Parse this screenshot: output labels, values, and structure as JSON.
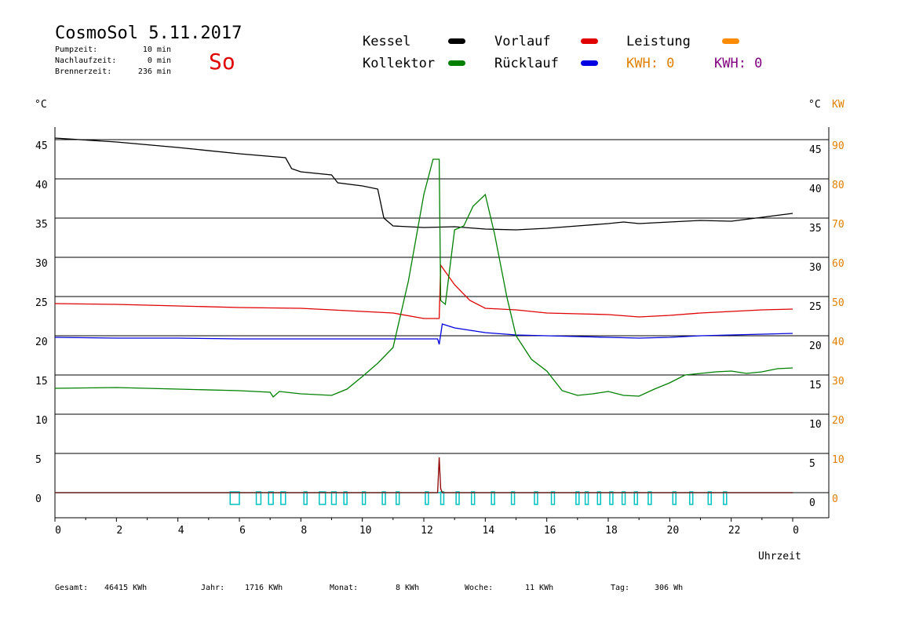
{
  "header": {
    "title": "CosmoSol 5.11.2017",
    "pump_label": "Pumpzeit:",
    "pump_value": "10 min",
    "afterrun_label": "Nachlaufzeit:",
    "afterrun_value": "0 min",
    "burner_label": "Brennerzeit:",
    "burner_value": "236 min",
    "weekday": "So"
  },
  "legend": {
    "kessel": {
      "label": "Kessel",
      "color": "#000000"
    },
    "kollektor": {
      "label": "Kollektor",
      "color": "#008000"
    },
    "vorlauf": {
      "label": "Vorlauf",
      "color": "#e00000"
    },
    "ruecklauf": {
      "label": "Rücklauf",
      "color": "#0000e0"
    },
    "leistung": {
      "label": "Leistung",
      "color": "#ff8c00"
    },
    "kwh1": {
      "label": "KWH: 0",
      "color": "#e08000"
    },
    "kwh2": {
      "label": "KWH: 0",
      "color": "#800080"
    }
  },
  "units": {
    "left": "°C",
    "right_c": "°C",
    "right_kw": "KW",
    "x": "Uhrzeit"
  },
  "footer": {
    "gesamt_label": "Gesamt:",
    "gesamt_value": "46415 KWh",
    "jahr_label": "Jahr:",
    "jahr_value": "1716 KWh",
    "monat_label": "Monat:",
    "monat_value": "8 KWh",
    "woche_label": "Woche:",
    "woche_value": "11 KWh",
    "tag_label": "Tag:",
    "tag_value": "306 Wh"
  },
  "chart_data": {
    "type": "line",
    "x_ticks": [
      "0",
      "2",
      "4",
      "6",
      "8",
      "10",
      "12",
      "14",
      "16",
      "18",
      "20",
      "22",
      "0"
    ],
    "y_ticks": [
      45,
      40,
      35,
      30,
      25,
      20,
      15,
      10,
      5,
      0
    ],
    "y2_ticks": [
      90,
      80,
      70,
      60,
      50,
      40,
      30,
      20,
      10,
      0
    ],
    "xlim": [
      0,
      24
    ],
    "ylim": [
      0,
      45
    ],
    "y2lim": [
      0,
      90
    ],
    "grid": true,
    "series": [
      {
        "name": "Kessel",
        "color": "#000000",
        "x": [
          0,
          2,
          4,
          6,
          7.5,
          7.7,
          8,
          9,
          9.2,
          10,
          10.5,
          10.7,
          11,
          12,
          13,
          14,
          15,
          16,
          17,
          18,
          18.5,
          19,
          20,
          21,
          22,
          23,
          24
        ],
        "y": [
          45.2,
          44.7,
          44,
          43.2,
          42.7,
          41.3,
          40.9,
          40.5,
          39.5,
          39.1,
          38.7,
          35,
          34,
          33.8,
          33.9,
          33.6,
          33.5,
          33.7,
          34,
          34.3,
          34.5,
          34.3,
          34.5,
          34.7,
          34.6,
          35.1,
          35.6
        ]
      },
      {
        "name": "Vorlauf",
        "color": "#e00000",
        "x": [
          0,
          2,
          4,
          6,
          8,
          9,
          10,
          11,
          12,
          12.5,
          12.55,
          13,
          13.5,
          14,
          15,
          16,
          17,
          18,
          19,
          20,
          21,
          22,
          23,
          24
        ],
        "y": [
          24.1,
          24.0,
          23.8,
          23.6,
          23.5,
          23.3,
          23.1,
          22.9,
          22.2,
          22.2,
          29,
          26.5,
          24.5,
          23.5,
          23.3,
          22.9,
          22.8,
          22.7,
          22.4,
          22.6,
          22.9,
          23.1,
          23.3,
          23.4
        ]
      },
      {
        "name": "Rücklauf",
        "color": "#0000e0",
        "x": [
          0,
          2,
          4,
          6,
          8,
          10,
          12,
          12.45,
          12.5,
          12.6,
          13,
          14,
          15,
          16,
          17,
          18,
          19,
          20,
          21,
          22,
          23,
          24
        ],
        "y": [
          19.8,
          19.7,
          19.7,
          19.6,
          19.6,
          19.6,
          19.6,
          19.6,
          18.9,
          21.5,
          21,
          20.4,
          20.1,
          20,
          19.9,
          19.8,
          19.7,
          19.8,
          20,
          20.1,
          20.2,
          20.3
        ]
      },
      {
        "name": "Kollektor",
        "color": "#008000",
        "x": [
          0,
          2,
          4,
          6,
          7,
          7.1,
          7.3,
          8,
          9,
          9.5,
          10,
          10.5,
          11,
          11.5,
          12,
          12.3,
          12.5,
          12.55,
          12.7,
          13,
          13.3,
          13.6,
          14,
          14.3,
          14.7,
          15,
          15.5,
          16,
          16.5,
          17,
          17.5,
          18,
          18.5,
          19,
          19.5,
          20,
          20.5,
          21,
          21.5,
          22,
          22.5,
          23,
          23.5,
          24
        ],
        "y": [
          13.3,
          13.4,
          13.2,
          13,
          12.8,
          12.2,
          12.9,
          12.6,
          12.4,
          13.2,
          14.8,
          16.5,
          18.5,
          27,
          38,
          42.5,
          42.5,
          24.5,
          24,
          33.5,
          34,
          36.5,
          38,
          33,
          25,
          20,
          17,
          15.5,
          13,
          12.4,
          12.6,
          12.9,
          12.4,
          12.3,
          13.2,
          14,
          15,
          15.2,
          15.4,
          15.5,
          15.2,
          15.4,
          15.8,
          15.9
        ]
      },
      {
        "name": "Leistung",
        "color": "#8b0000",
        "x": [
          0,
          12.45,
          12.5,
          12.55,
          12.6,
          24
        ],
        "y": [
          0,
          0,
          4.5,
          0.5,
          0,
          0
        ]
      }
    ],
    "burner_flags": {
      "color": "#00c0c0",
      "intervals": [
        [
          5.7,
          6.0
        ],
        [
          6.55,
          6.7
        ],
        [
          6.95,
          7.1
        ],
        [
          7.35,
          7.5
        ],
        [
          8.1,
          8.2
        ],
        [
          8.6,
          8.8
        ],
        [
          9.0,
          9.15
        ],
        [
          9.4,
          9.5
        ],
        [
          10.0,
          10.1
        ],
        [
          10.65,
          10.75
        ],
        [
          11.1,
          11.2
        ],
        [
          12.05,
          12.15
        ],
        [
          12.55,
          12.65
        ],
        [
          13.05,
          13.15
        ],
        [
          13.55,
          13.65
        ],
        [
          14.2,
          14.3
        ],
        [
          14.85,
          14.95
        ],
        [
          15.6,
          15.7
        ],
        [
          16.15,
          16.25
        ],
        [
          16.95,
          17.05
        ],
        [
          17.25,
          17.35
        ],
        [
          17.65,
          17.75
        ],
        [
          18.05,
          18.15
        ],
        [
          18.45,
          18.55
        ],
        [
          18.85,
          18.95
        ],
        [
          19.3,
          19.4
        ],
        [
          20.1,
          20.2
        ],
        [
          20.65,
          20.75
        ],
        [
          21.25,
          21.35
        ],
        [
          21.75,
          21.85
        ]
      ]
    }
  }
}
